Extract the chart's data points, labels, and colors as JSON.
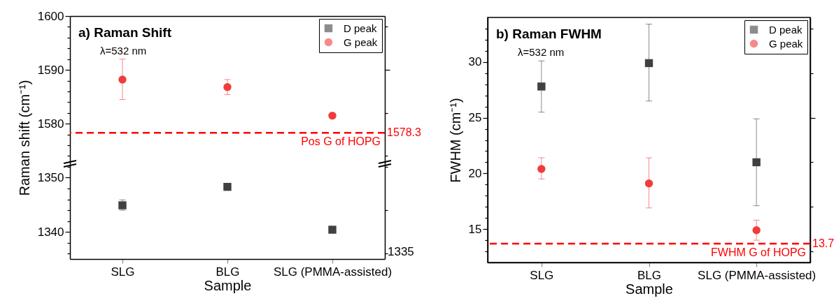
{
  "chart_data": [
    {
      "type": "scatter",
      "title": "a) Raman Shift",
      "ylabel": "Raman shift (cm⁻¹)",
      "annotations": [
        "λ=532 nm",
        "1578.3"
      ],
      "categories": [
        null,
        null,
        null
      ],
      "series": [
        {
          "name": "D peak",
          "color": "#404040",
          "marker": "square",
          "values": [
            null,
            null,
            null
          ]
        },
        {
          "name": "G peak",
          "color": "#f03c3c",
          "marker": "circle",
          "values": [
            1588.2,
            1586.8,
            1581.5
          ],
          "errors": [
            [
              1584.5,
              1592.0
            ],
            [
              1585.4,
              1588.2
            ],
            null
          ]
        }
      ],
      "ylim": [
        1572.5,
        1600
      ],
      "yticks": [
        {
          "value": 1574,
          "label": null
        },
        {
          "value": 1576,
          "label": null
        },
        {
          "value": 1578,
          "label": null
        },
        1580,
        {
          "value": 1582,
          "label": null
        },
        {
          "value": 1584,
          "label": null
        },
        {
          "value": 1586,
          "label": null
        },
        {
          "value": 1588,
          "label": null
        },
        1590,
        {
          "value": 1592,
          "label": null
        },
        {
          "value": 1594,
          "label": null
        },
        {
          "value": 1596,
          "label": null
        },
        {
          "value": 1598,
          "label": null
        },
        1600
      ],
      "ref_lines": [
        {
          "axis": "y",
          "value": 1578.3,
          "label": "Pos G of HOPG",
          "color": "#ff0000",
          "line_style": "dashed"
        }
      ],
      "legend": "top right",
      "tick_labels": "y"
    },
    {
      "type": "scatter",
      "xlabel": "Sample",
      "annotations": [
        "1335"
      ],
      "categories": [
        "SLG",
        "BLG",
        "SLG (PMMA-assisted)"
      ],
      "series": [
        {
          "color": "#404040",
          "marker": "square",
          "values": [
            1344.9,
            1348.3,
            1340.4
          ],
          "errors": [
            [
              1344.0,
              1345.9
            ],
            null,
            null
          ]
        }
      ],
      "ylim": [
        1335,
        1352.5
      ],
      "yticks": [
        {
          "value": 1336,
          "label": null
        },
        {
          "value": 1338,
          "label": null
        },
        1340,
        {
          "value": 1342,
          "label": null
        },
        {
          "value": 1344,
          "label": null
        },
        {
          "value": 1346,
          "label": null
        },
        {
          "value": 1348,
          "label": null
        },
        1350,
        {
          "value": 1352,
          "label": null
        }
      ]
    },
    {
      "type": "scatter",
      "title": "b) Raman FWHM",
      "ylabel": "FWHM (cm⁻¹)",
      "xlabel": "Sample",
      "annotations": [
        "λ=532 nm",
        "13.7"
      ],
      "categories": [
        "SLG",
        "BLG",
        "SLG (PMMA-assisted)"
      ],
      "series": [
        {
          "name": "D peak",
          "color": "#404040",
          "marker": "square",
          "values": [
            27.8,
            29.9,
            21.0
          ],
          "errors": [
            [
              25.5,
              30.1
            ],
            [
              26.5,
              33.4
            ],
            [
              17.1,
              24.9
            ]
          ]
        },
        {
          "name": "G peak",
          "color": "#f03c3c",
          "marker": "circle",
          "values": [
            20.4,
            19.1,
            14.9
          ],
          "errors": [
            [
              19.5,
              21.4
            ],
            [
              16.9,
              21.4
            ],
            [
              14.0,
              15.8
            ]
          ]
        }
      ],
      "ylim": [
        12,
        34
      ],
      "yticks": [
        {
          "value": 13,
          "label": null
        },
        {
          "value": 14,
          "label": null
        },
        15,
        {
          "value": 16,
          "label": null
        },
        {
          "value": 17,
          "label": null
        },
        {
          "value": 18,
          "label": null
        },
        {
          "value": 19,
          "label": null
        },
        20,
        {
          "value": 21,
          "label": null
        },
        {
          "value": 22,
          "label": null
        },
        {
          "value": 23,
          "label": null
        },
        {
          "value": 24,
          "label": null
        },
        25,
        {
          "value": 26,
          "label": null
        },
        {
          "value": 27,
          "label": null
        },
        {
          "value": 28,
          "label": null
        },
        {
          "value": 29,
          "label": null
        },
        30,
        {
          "value": 31,
          "label": null
        },
        {
          "value": 32,
          "label": null
        },
        {
          "value": 33,
          "label": null
        }
      ],
      "ref_lines": [
        {
          "axis": "y",
          "value": 13.7,
          "label": "FWHM G of HOPG",
          "color": "#ff0000",
          "line_style": "dashed"
        }
      ],
      "legend": "top right"
    }
  ]
}
